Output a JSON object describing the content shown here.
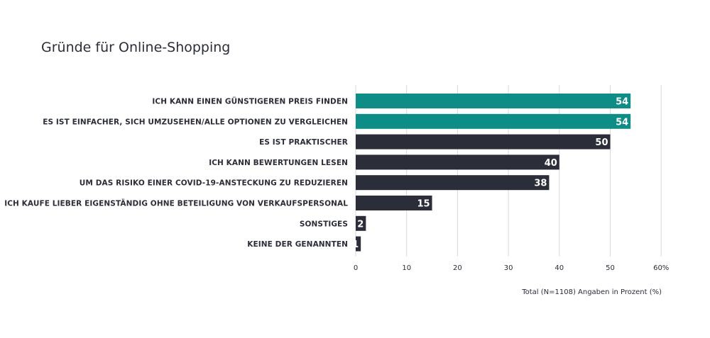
{
  "chart_data": {
    "type": "bar",
    "orientation": "horizontal",
    "title": "Gründe für Online-Shopping",
    "categories": [
      "ICH KANN EINEN GÜNSTIGEREN PREIS FINDEN",
      "ES IST EINFACHER, SICH UMZUSEHEN/ALLE OPTIONEN ZU VERGLEICHEN",
      "ES IST PRAKTISCHER",
      "ICH KANN BEWERTUNGEN LESEN",
      "UM DAS RISIKO EINER COVID-19-ANSTECKUNG ZU REDUZIEREN",
      "ICH KAUFE LIEBER EIGENSTÄNDIG OHNE BETEILIGUNG VON VERKAUFSPERSONAL",
      "SONSTIGES",
      "KEINE DER GENANNTEN"
    ],
    "values": [
      54,
      54,
      50,
      40,
      38,
      15,
      2,
      1
    ],
    "highlight_indices": [
      0,
      1
    ],
    "xlim": [
      0,
      60
    ],
    "xticks": [
      "0",
      "10",
      "20",
      "30",
      "40",
      "50",
      "60%"
    ],
    "xlabel": "Total (N=1108) Angaben in Prozent (%)",
    "grid": true,
    "colors": {
      "highlight": "#0e8c86",
      "default": "#2b2d38",
      "grid": "#d9d9d9",
      "value_text": "#ffffff"
    }
  }
}
